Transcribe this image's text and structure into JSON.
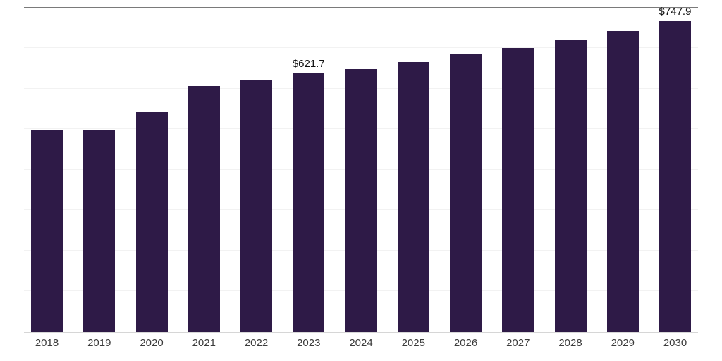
{
  "chart_data": {
    "type": "bar",
    "categories": [
      "2018",
      "2019",
      "2020",
      "2021",
      "2022",
      "2023",
      "2024",
      "2025",
      "2026",
      "2027",
      "2028",
      "2029",
      "2030"
    ],
    "values": [
      486,
      487,
      529,
      592,
      606,
      621.7,
      633,
      650,
      669,
      684,
      702,
      724,
      747.9
    ],
    "annotations": {
      "2023": "$621.7",
      "2030": "$747.9"
    },
    "title": "",
    "xlabel": "",
    "ylabel": "",
    "ylim": [
      0,
      780
    ],
    "grid": true,
    "legend": "none",
    "bar_color": "#2e1a47",
    "label_color": "#111111",
    "tick_color": "#3c3c3c"
  }
}
